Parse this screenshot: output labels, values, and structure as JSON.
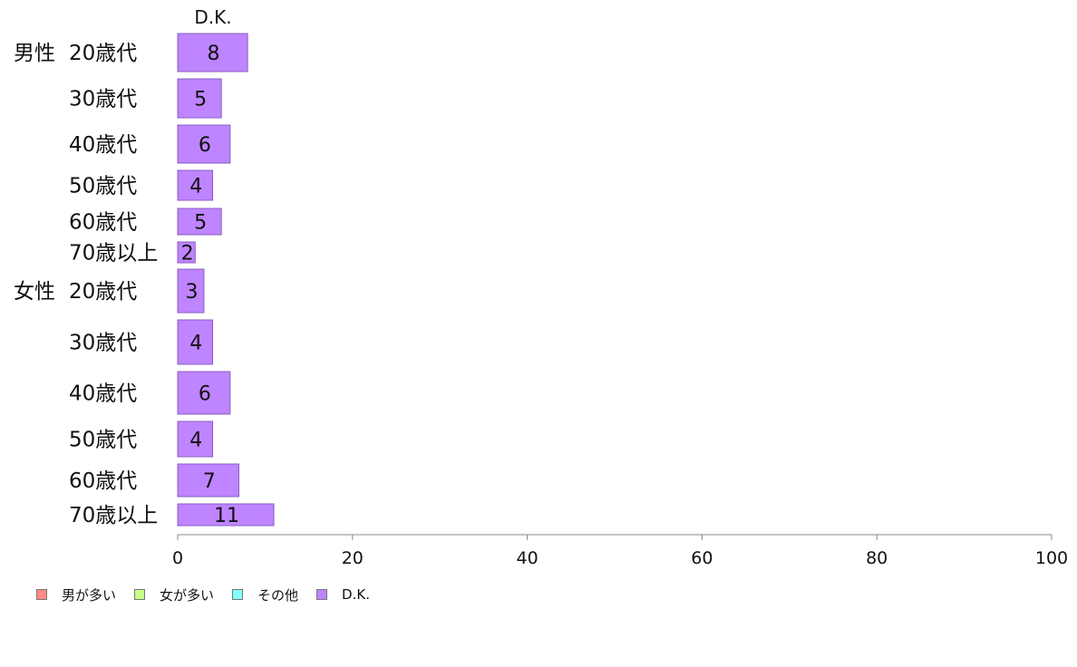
{
  "chart_data": {
    "type": "bar",
    "orientation": "horizontal",
    "column_header": "D.K.",
    "groups": [
      {
        "label": "男性",
        "categories": [
          "20歳代",
          "30歳代",
          "40歳代",
          "50歳代",
          "60歳代",
          "70歳以上"
        ],
        "values": [
          8,
          5,
          6,
          4,
          5,
          2
        ]
      },
      {
        "label": "女性",
        "categories": [
          "20歳代",
          "30歳代",
          "40歳代",
          "50歳代",
          "60歳代",
          "70歳以上"
        ],
        "values": [
          3,
          4,
          6,
          4,
          7,
          11
        ]
      }
    ],
    "series": [
      {
        "name": "男が多い",
        "color": "#ff8a84"
      },
      {
        "name": "女が多い",
        "color": "#c8ff84"
      },
      {
        "name": "その他",
        "color": "#84ffff"
      },
      {
        "name": "D.K.",
        "color": "#bf84ff"
      }
    ],
    "xlim": [
      0,
      100
    ],
    "xticks": [
      "0",
      "20",
      "40",
      "60",
      "80",
      "100"
    ],
    "grid": false,
    "legend_position": "bottom-left"
  }
}
